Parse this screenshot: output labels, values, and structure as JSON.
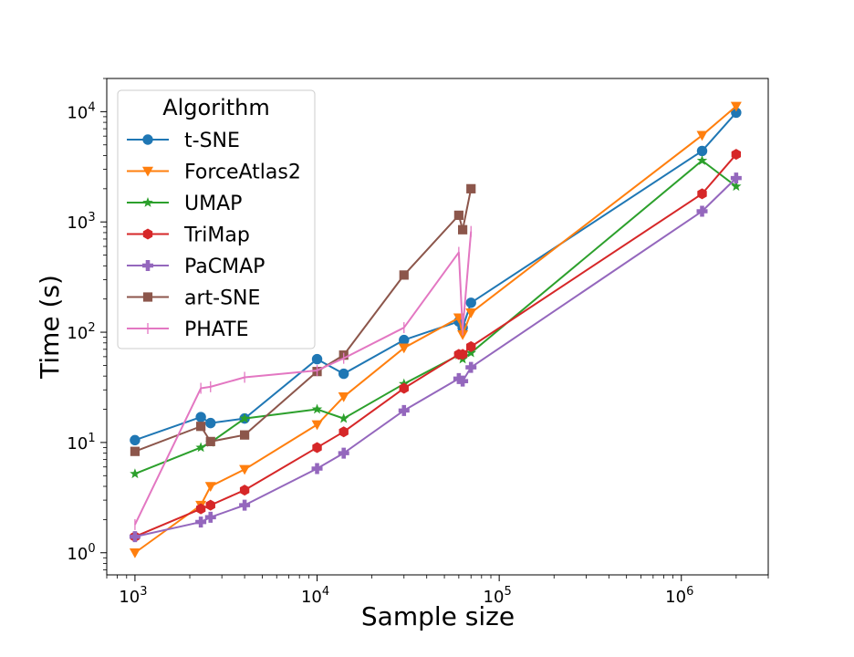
{
  "chart_data": {
    "type": "line",
    "title": "",
    "xlabel": "Sample size",
    "ylabel": "Time (s)",
    "xscale": "log",
    "yscale": "log",
    "xlim": [
      700,
      3000000
    ],
    "ylim": [
      0.63,
      20000
    ],
    "grid": false,
    "legend": {
      "title": "Algorithm",
      "placement": "top-left"
    },
    "x_ticks": [
      {
        "value": 1000,
        "base": "10",
        "exp": "3"
      },
      {
        "value": 10000,
        "base": "10",
        "exp": "4"
      },
      {
        "value": 100000,
        "base": "10",
        "exp": "5"
      },
      {
        "value": 1000000,
        "base": "10",
        "exp": "6"
      }
    ],
    "y_ticks": [
      {
        "value": 1,
        "base": "10",
        "exp": "0"
      },
      {
        "value": 10,
        "base": "10",
        "exp": "1"
      },
      {
        "value": 100,
        "base": "10",
        "exp": "2"
      },
      {
        "value": 1000,
        "base": "10",
        "exp": "3"
      },
      {
        "value": 10000,
        "base": "10",
        "exp": "4"
      }
    ],
    "series": [
      {
        "name": "t-SNE",
        "color": "#1f77b4",
        "marker": "circle",
        "x": [
          1000,
          2300,
          2600,
          4000,
          10000,
          14000,
          30000,
          60000,
          63000,
          70000,
          1300000,
          2000000
        ],
        "y": [
          10.5,
          17,
          15,
          16.5,
          57,
          42,
          85,
          125,
          110,
          185,
          4400,
          9800
        ]
      },
      {
        "name": "ForceAtlas2",
        "color": "#ff7f0e",
        "marker": "triangle-down",
        "x": [
          1000,
          2300,
          2600,
          4000,
          10000,
          14000,
          30000,
          60000,
          63000,
          70000,
          1300000,
          2000000
        ],
        "y": [
          1.0,
          2.7,
          4.0,
          5.7,
          14.5,
          26,
          72,
          135,
          95,
          150,
          6100,
          11200
        ]
      },
      {
        "name": "UMAP",
        "color": "#2ca02c",
        "marker": "star",
        "x": [
          1000,
          2300,
          2600,
          4000,
          10000,
          14000,
          30000,
          60000,
          63000,
          70000,
          1300000,
          2000000
        ],
        "y": [
          5.2,
          9.0,
          10.0,
          16.5,
          20,
          16.5,
          34,
          62,
          57,
          65,
          3600,
          2100
        ]
      },
      {
        "name": "TriMap",
        "color": "#d62728",
        "marker": "hexagon",
        "x": [
          1000,
          2300,
          2600,
          4000,
          10000,
          14000,
          30000,
          60000,
          63000,
          70000,
          1300000,
          2000000
        ],
        "y": [
          1.4,
          2.5,
          2.7,
          3.7,
          9.0,
          12.5,
          31,
          63,
          63,
          74,
          1800,
          4100
        ]
      },
      {
        "name": "PaCMAP",
        "color": "#9467bd",
        "marker": "plus",
        "x": [
          1000,
          2300,
          2600,
          4000,
          10000,
          14000,
          30000,
          60000,
          63000,
          70000,
          1300000,
          2000000
        ],
        "y": [
          1.4,
          1.9,
          2.1,
          2.7,
          5.8,
          8.0,
          19.5,
          38,
          36,
          48,
          1250,
          2500
        ]
      },
      {
        "name": "art-SNE",
        "color": "#8c564b",
        "marker": "square",
        "x": [
          1000,
          2300,
          2600,
          4000,
          10000,
          14000,
          30000,
          60000,
          63000,
          70000
        ],
        "y": [
          8.3,
          14,
          10.2,
          11.7,
          44,
          62,
          330,
          1150,
          850,
          2000
        ]
      },
      {
        "name": "PHATE",
        "color": "#e377c2",
        "marker": "vline",
        "x": [
          1000,
          2300,
          2600,
          4000,
          10000,
          14000,
          30000,
          60000,
          63000,
          70000
        ],
        "y": [
          1.8,
          31,
          32,
          39,
          45,
          58,
          110,
          530,
          105,
          820
        ]
      }
    ]
  }
}
